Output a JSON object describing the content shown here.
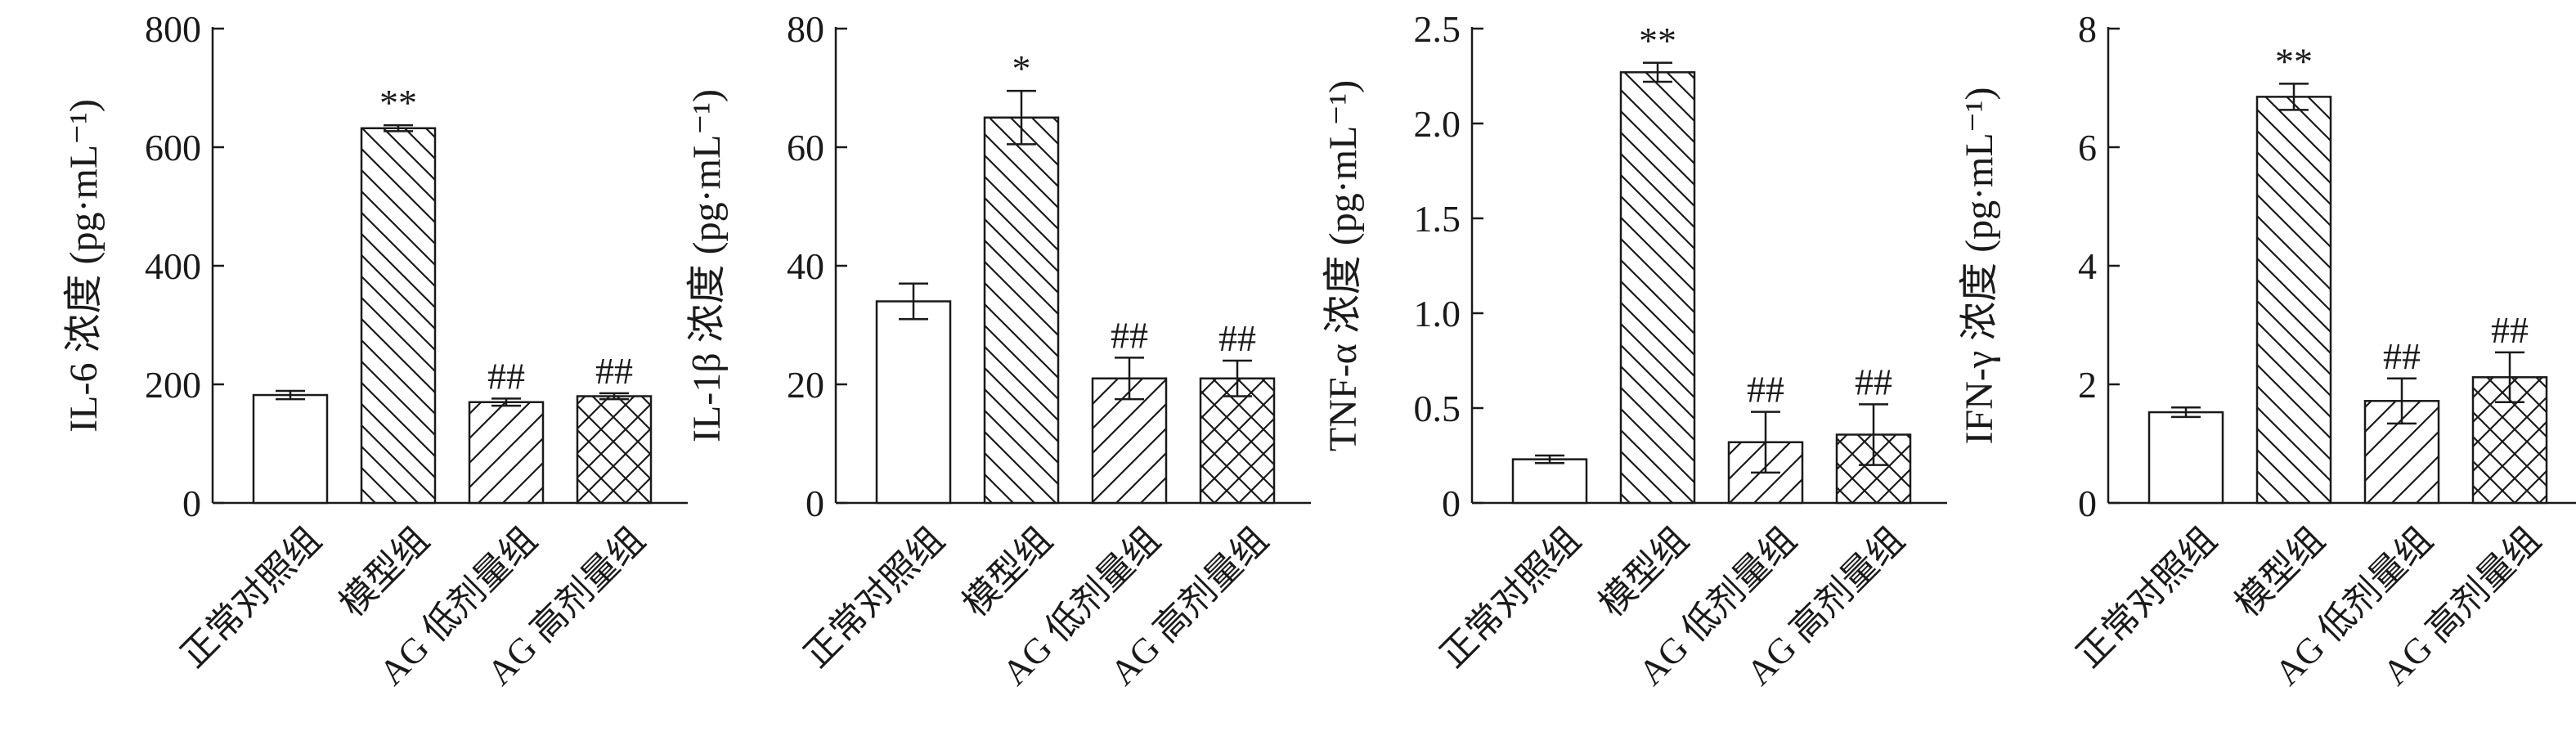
{
  "chart_data": [
    {
      "type": "bar",
      "categories": [
        "正常对照组",
        "模型组",
        "AG 低剂量组",
        "AG 高剂量组"
      ],
      "values": [
        182,
        632,
        170,
        180
      ],
      "errors": [
        7,
        5,
        6,
        5
      ],
      "markers": [
        "",
        "**",
        "##",
        "##"
      ],
      "patterns": [
        "none",
        "diag-down",
        "diag-up",
        "crosshatch"
      ],
      "ylabel": "IL-6 浓度 (pg·mL⁻¹)",
      "ylim": [
        0,
        800
      ],
      "yticks": [
        0,
        200,
        400,
        600,
        800
      ]
    },
    {
      "type": "bar",
      "categories": [
        "正常对照组",
        "模型组",
        "AG 低剂量组",
        "AG 高剂量组"
      ],
      "values": [
        34,
        65,
        21,
        21
      ],
      "errors": [
        3,
        4.5,
        3.5,
        3
      ],
      "markers": [
        "",
        "*",
        "##",
        "##"
      ],
      "patterns": [
        "none",
        "diag-down",
        "diag-up",
        "crosshatch"
      ],
      "ylabel": "IL-1β 浓度 (pg·mL⁻¹)",
      "ylim": [
        0,
        80
      ],
      "yticks": [
        0,
        20,
        40,
        60,
        80
      ]
    },
    {
      "type": "bar",
      "categories": [
        "正常对照组",
        "模型组",
        "AG 低剂量组",
        "AG 高剂量组"
      ],
      "values": [
        0.23,
        2.27,
        0.32,
        0.36
      ],
      "errors": [
        0.02,
        0.05,
        0.16,
        0.16
      ],
      "markers": [
        "",
        "**",
        "##",
        "##"
      ],
      "patterns": [
        "none",
        "diag-down",
        "diag-up",
        "crosshatch"
      ],
      "ylabel": "TNF-α 浓度 (pg·mL⁻¹)",
      "ylim": [
        0,
        2.5
      ],
      "yticks": [
        "0",
        "0.5",
        "1.0",
        "1.5",
        "2.0",
        "2.5"
      ]
    },
    {
      "type": "bar",
      "categories": [
        "正常对照组",
        "模型组",
        "AG 低剂量组",
        "AG 高剂量组"
      ],
      "values": [
        1.53,
        6.85,
        1.72,
        2.12
      ],
      "errors": [
        0.08,
        0.22,
        0.38,
        0.42
      ],
      "markers": [
        "",
        "**",
        "##",
        "##"
      ],
      "patterns": [
        "none",
        "diag-down",
        "diag-up",
        "crosshatch"
      ],
      "ylabel": "IFN-γ 浓度 (pg·mL⁻¹)",
      "ylim": [
        0,
        8
      ],
      "yticks": [
        0,
        2,
        4,
        6,
        8
      ]
    }
  ]
}
